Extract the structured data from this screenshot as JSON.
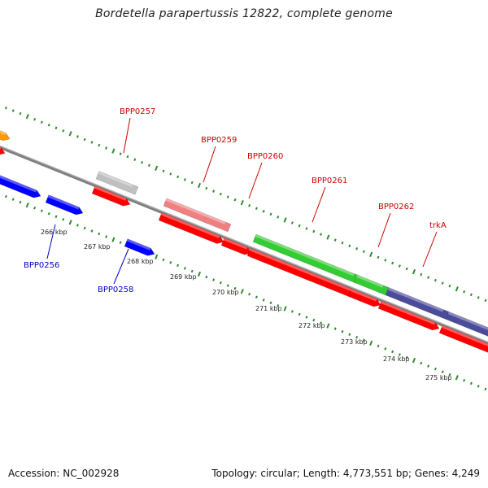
{
  "title": "Bordetella parapertussis 12822, complete genome",
  "footer": {
    "accession": "Accession: NC_002928",
    "summary": "Topology: circular; Length: 4,773,551 bp; Genes: 4,249"
  },
  "colors": {
    "backbone": "#808080",
    "tick": "#2e8b2e",
    "label_top": "#cc0000",
    "label_bottom": "#0000cc",
    "strand_plus": "#ff0000",
    "strand_minus": "#0000ff",
    "orange": "#ff9900",
    "grey": "#c0c0c0",
    "pink": "#f08080",
    "green": "#33cc33",
    "purple": "#4b4b9c"
  },
  "scale_labels": [
    "266 kbp",
    "267 kbp",
    "268 kbp",
    "269 kbp",
    "270 kbp",
    "271 kbp",
    "272 kbp",
    "273 kbp",
    "274 kbp",
    "275 kbp"
  ],
  "gene_labels_top": [
    "BPP0257",
    "BPP0259",
    "BPP0260",
    "BPP0261",
    "BPP0262",
    "trkA"
  ],
  "gene_labels_bottom": [
    "BPP0256",
    "BPP0258"
  ]
}
